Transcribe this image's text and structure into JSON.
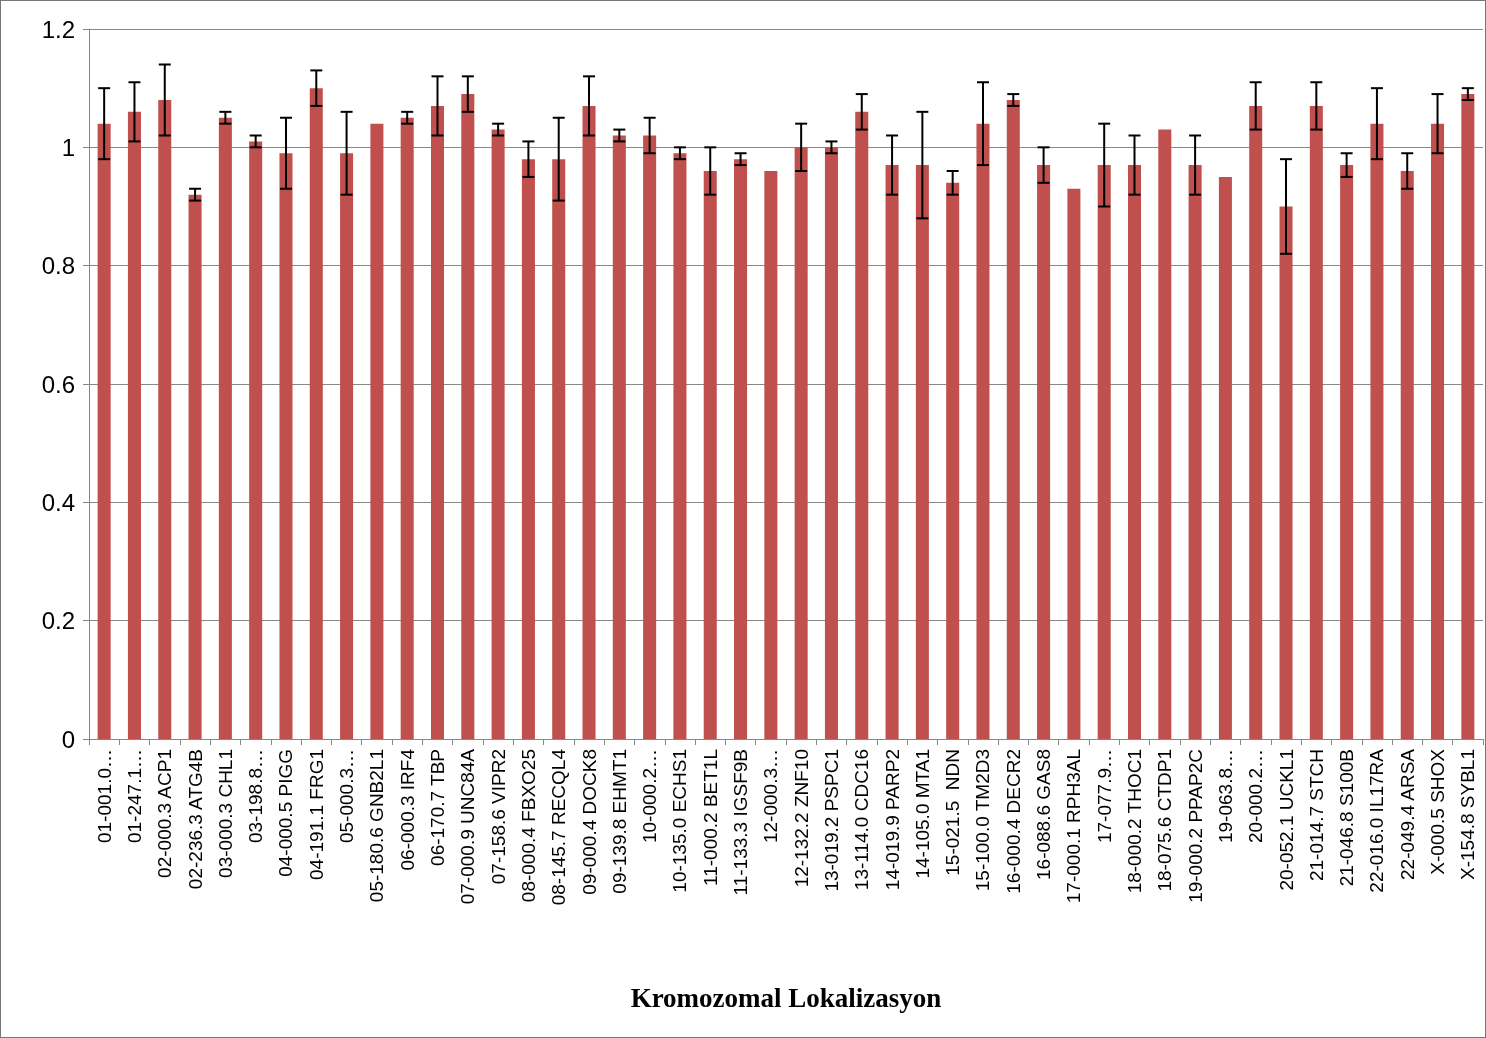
{
  "chart_data": {
    "type": "bar",
    "xlabel": "Kromozomal Lokalizasyon",
    "categories": [
      "01-001.0…",
      "01-247.1…",
      "02-000.3 ACP1",
      "02-236.3 ATG4B",
      "03-000.3 CHL1",
      "03-198.8…",
      "04-000.5 PIGG",
      "04-191.1 FRG1",
      "05-000.3…",
      "05-180.6 GNB2L1",
      "06-000.3 IRF4",
      "06-170.7 TBP",
      "07-000.9 UNC84A",
      "07-158.6 VIPR2",
      "08-000.4 FBXO25",
      "08-145.7 RECQL4",
      "09-000.4 DOCK8",
      "09-139.8 EHMT1",
      "10-000.2…",
      "10-135.0 ECHS1",
      "11-000.2 BET1L",
      "11-133.3 IGSF9B",
      "12-000.3…",
      "12-132.2 ZNF10",
      "13-019.2 PSPC1",
      "13-114.0 CDC16",
      "14-019.9 PARP2",
      "14-105.0 MTA1",
      "15-021.5  NDN",
      "15-100.0 TM2D3",
      "16-000.4 DECR2",
      "16-088.6 GAS8",
      "17-000.1 RPH3AL",
      "17-077.9…",
      "18-000.2 THOC1",
      "18-075.6 CTDP1",
      "19-000.2 PPAP2C",
      "19-063.8…",
      "20-000.2…",
      "20-052.1 UCKL1",
      "21-014.7 STCH",
      "21-046.8 S100B",
      "22-016.0 IL17RA",
      "22-049.4 ARSA",
      "X-000.5 SHOX",
      "X-154.8 SYBL1"
    ],
    "values": [
      1.04,
      1.06,
      1.08,
      0.92,
      1.05,
      1.01,
      0.99,
      1.1,
      0.99,
      1.04,
      1.05,
      1.07,
      1.09,
      1.03,
      0.98,
      0.98,
      1.07,
      1.02,
      1.02,
      0.99,
      0.96,
      0.98,
      0.96,
      1.0,
      1.0,
      1.06,
      0.97,
      0.97,
      0.94,
      1.04,
      1.08,
      0.97,
      0.93,
      0.97,
      0.97,
      1.03,
      0.97,
      0.95,
      1.07,
      0.9,
      1.07,
      0.97,
      1.04,
      0.96,
      1.04,
      1.09
    ],
    "errors": [
      0.06,
      0.05,
      0.06,
      0.01,
      0.01,
      0.01,
      0.06,
      0.03,
      0.07,
      null,
      0.01,
      0.05,
      0.03,
      0.01,
      0.03,
      0.07,
      0.05,
      0.01,
      0.03,
      0.01,
      0.04,
      0.01,
      null,
      0.04,
      0.01,
      0.03,
      0.05,
      0.09,
      0.02,
      0.07,
      0.01,
      0.03,
      null,
      0.07,
      0.05,
      null,
      0.05,
      null,
      0.04,
      0.08,
      0.04,
      0.02,
      0.06,
      0.03,
      0.05,
      0.01
    ],
    "color": "#c0504d",
    "ylim": [
      0,
      1.2
    ],
    "yticks": [
      0,
      0.2,
      0.4,
      0.6,
      0.8,
      1,
      1.2
    ],
    "grid": "y"
  }
}
